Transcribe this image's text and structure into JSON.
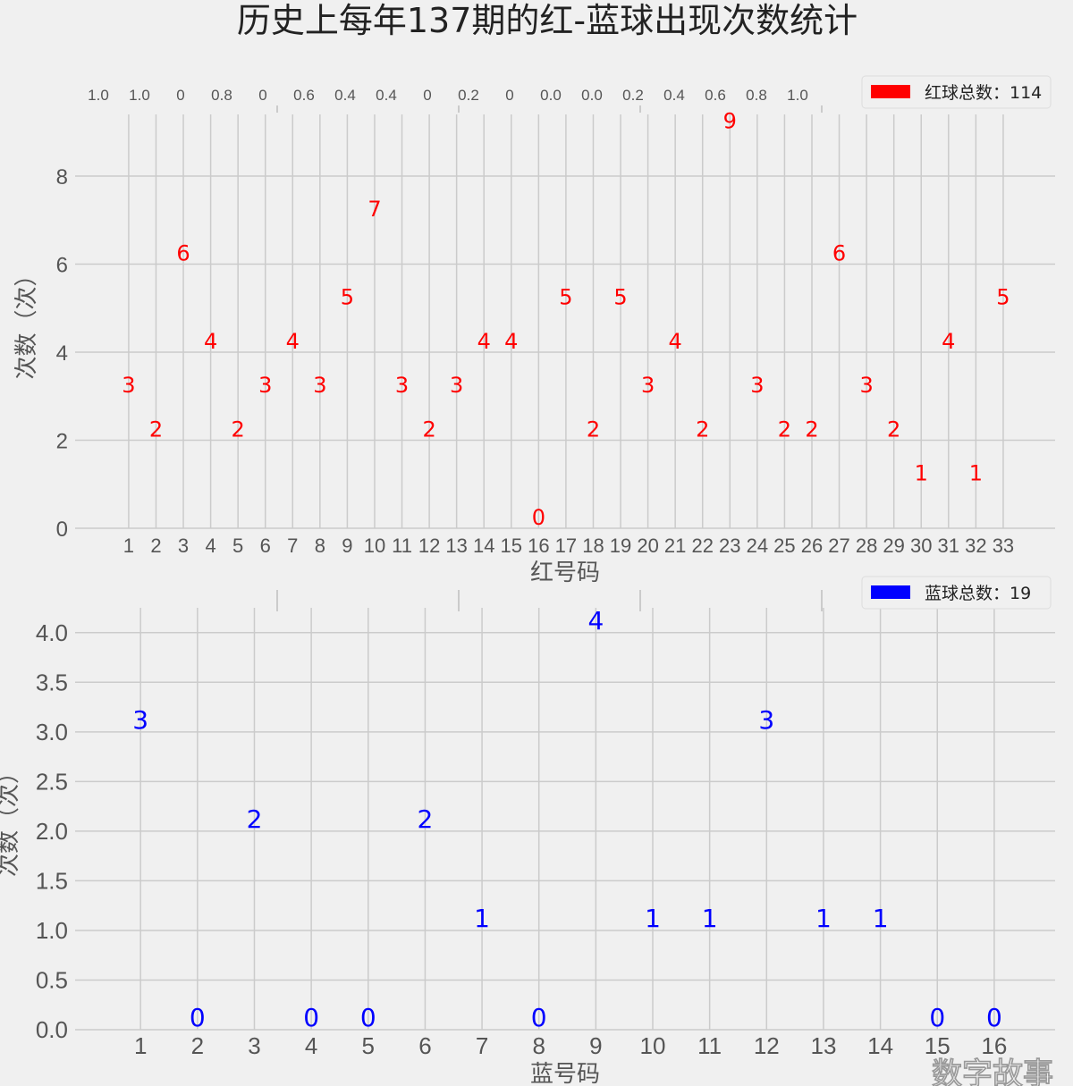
{
  "title": "历史上每年137期的红-蓝球出现次数统计",
  "watermark": "数字故事",
  "background_axis_ticks": [
    "1.0",
    "1.0",
    "0",
    "0.8",
    "0",
    "0.6",
    "0.4",
    "0.4",
    "0",
    "0.2",
    "0",
    "0.0",
    "0.0",
    "0.2",
    "0.4",
    "0.6",
    "0.8",
    "1.0"
  ],
  "colors": {
    "red": "#ff0000",
    "blue": "#0000ff",
    "background": "#f0f0f0",
    "grid": "#cbcbcb",
    "text": "#555555"
  },
  "chart_data": [
    {
      "type": "bar",
      "title": "",
      "xlabel": "红号码",
      "ylabel": "次数（次）",
      "legend": "红球总数：114",
      "legend_position": "top-right",
      "color": "#ff0000",
      "categories": [
        "1",
        "2",
        "3",
        "4",
        "5",
        "6",
        "7",
        "8",
        "9",
        "10",
        "11",
        "12",
        "13",
        "14",
        "15",
        "16",
        "17",
        "18",
        "19",
        "20",
        "21",
        "22",
        "23",
        "24",
        "25",
        "26",
        "27",
        "28",
        "29",
        "30",
        "31",
        "32",
        "33"
      ],
      "values": [
        3,
        2,
        6,
        4,
        2,
        3,
        4,
        3,
        5,
        7,
        3,
        2,
        3,
        4,
        4,
        0,
        5,
        2,
        5,
        3,
        4,
        2,
        9,
        3,
        2,
        2,
        6,
        3,
        2,
        1,
        4,
        1,
        5
      ],
      "yticks": [
        "0",
        "2",
        "4",
        "6",
        "8"
      ],
      "ytick_values": [
        0,
        2,
        4,
        6,
        8
      ],
      "ylim": [
        0,
        9.4
      ],
      "xlim": [
        -0.96,
        34.9
      ],
      "grid": true
    },
    {
      "type": "bar",
      "title": "",
      "xlabel": "蓝号码",
      "ylabel": "次数（次）",
      "legend": "蓝球总数：19",
      "legend_position": "top-right",
      "color": "#0000ff",
      "categories": [
        "1",
        "2",
        "3",
        "4",
        "5",
        "6",
        "7",
        "8",
        "9",
        "10",
        "11",
        "12",
        "13",
        "14",
        "15",
        "16"
      ],
      "values": [
        3,
        0,
        2,
        0,
        0,
        2,
        1,
        0,
        4,
        1,
        1,
        3,
        1,
        1,
        0,
        0
      ],
      "yticks": [
        "0.0",
        "0.5",
        "1.0",
        "1.5",
        "2.0",
        "2.5",
        "3.0",
        "3.5",
        "4.0"
      ],
      "ytick_values": [
        0,
        0.5,
        1,
        1.5,
        2,
        2.5,
        3,
        3.5,
        4
      ],
      "ylim": [
        0,
        4.25
      ],
      "xlim": [
        -0.15,
        17.07
      ],
      "grid": true
    }
  ]
}
